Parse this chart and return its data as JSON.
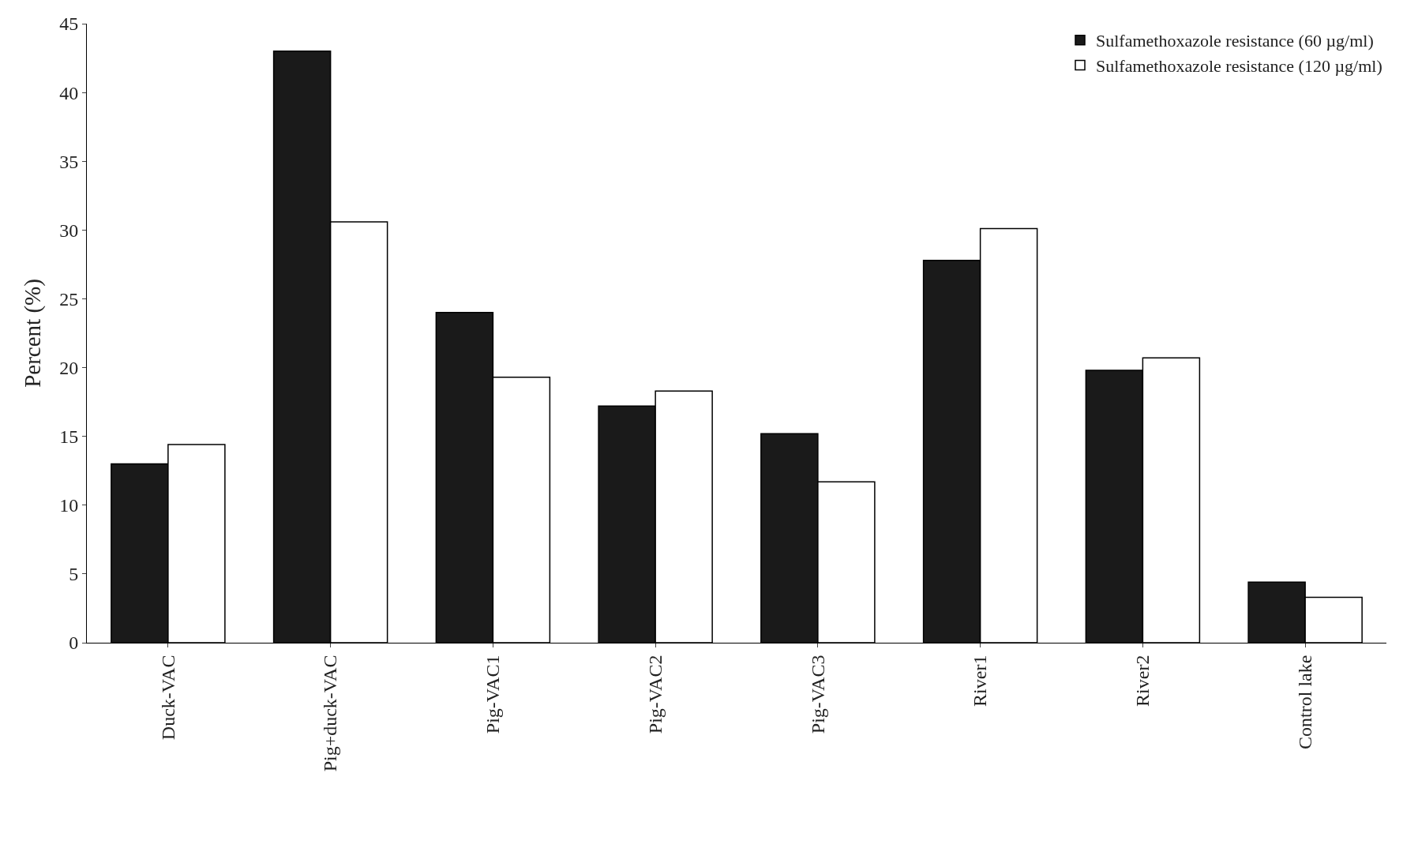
{
  "chart_data": {
    "type": "bar",
    "ylabel": "Percent (%)",
    "categories": [
      "Duck-VAC",
      "Pig+duck-VAC",
      "Pig-VAC1",
      "Pig-VAC2",
      "Pig-VAC3",
      "River1",
      "River2",
      "Control lake"
    ],
    "series": [
      {
        "name": "Sulfamethoxazole resistance (60 µg/ml)",
        "color": "#1a1a1a",
        "values": [
          13,
          43,
          24,
          17.2,
          15.2,
          27.8,
          19.8,
          4.4
        ]
      },
      {
        "name": "Sulfamethoxazole resistance (120 µg/ml)",
        "color": "#ffffff",
        "values": [
          14.4,
          30.6,
          19.3,
          18.3,
          11.7,
          30.1,
          20.7,
          3.3
        ]
      }
    ],
    "ylim": [
      0,
      45
    ],
    "yticks": [
      0,
      5,
      10,
      15,
      20,
      25,
      30,
      35,
      40,
      45
    ],
    "legend": "top right"
  }
}
